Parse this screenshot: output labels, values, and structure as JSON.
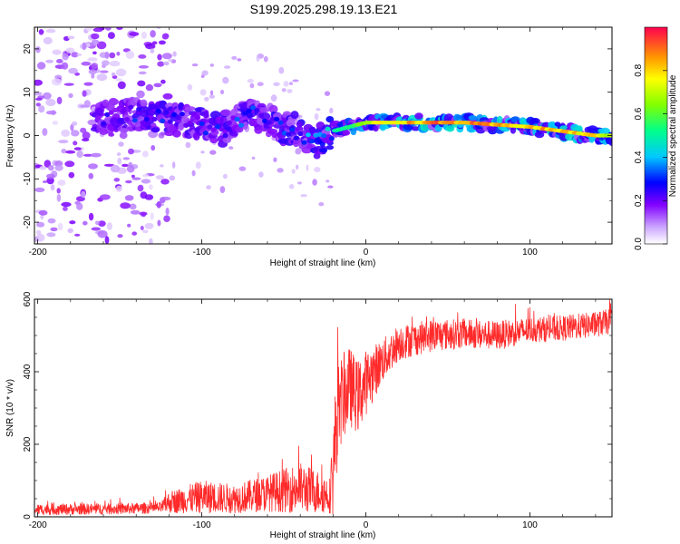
{
  "title": "S199.2025.298.19.13.E21",
  "chart_data": [
    {
      "type": "heatmap",
      "title": "S199.2025.298.19.13.E21",
      "xlabel": "Height of straight line (km)",
      "ylabel": "Frequency (Hz)",
      "xlim": [
        -202,
        150
      ],
      "ylim": [
        -25,
        25
      ],
      "xticks": [
        -200,
        -100,
        0,
        100
      ],
      "xtick_labels": [
        "-200",
        "-100",
        "0",
        "100"
      ],
      "yticks": [
        20,
        10,
        0,
        -10,
        -20
      ],
      "ytick_labels": [
        "20",
        "10",
        "0",
        "-10",
        "-20"
      ],
      "colorbar": {
        "label": "Normalized spectral amplitude",
        "range": [
          0,
          1
        ],
        "ticks": [
          0.0,
          0.2,
          0.4,
          0.6,
          0.8
        ],
        "tick_labels": [
          "0.0",
          "0.2",
          "0.4",
          "0.6",
          "0.8"
        ],
        "colormap": "rainbow"
      },
      "ridge": {
        "x": [
          -160,
          -140,
          -120,
          -100,
          -90,
          -80,
          -70,
          -60,
          -50,
          -40,
          -30,
          -20,
          -10,
          0,
          20,
          40,
          60,
          80,
          100,
          120,
          140,
          150
        ],
        "freq": [
          4,
          5,
          4,
          3,
          1,
          3,
          5,
          4,
          2,
          1,
          -2,
          1,
          2,
          3,
          3,
          3,
          3,
          2.5,
          2,
          1,
          0,
          0
        ],
        "amplitude": [
          0.25,
          0.3,
          0.3,
          0.3,
          0.3,
          0.3,
          0.35,
          0.35,
          0.35,
          0.35,
          0.4,
          0.45,
          0.6,
          0.7,
          0.85,
          0.9,
          0.9,
          0.85,
          0.85,
          0.85,
          0.8,
          0.75
        ]
      }
    },
    {
      "type": "line",
      "xlabel": "Height of straight line (km)",
      "ylabel": "SNR (10 * v/v)",
      "xlim": [
        -202,
        150
      ],
      "ylim": [
        0,
        600
      ],
      "xticks": [
        -200,
        -100,
        0,
        100
      ],
      "xtick_labels": [
        "-200",
        "-100",
        "0",
        "100"
      ],
      "yticks": [
        0,
        200,
        400,
        600
      ],
      "ytick_labels": [
        "0",
        "200",
        "400",
        "600"
      ],
      "color": "#ff0000",
      "envelope": {
        "x": [
          -202,
          -150,
          -125,
          -120,
          -100,
          -80,
          -60,
          -40,
          -30,
          -22,
          -20,
          -18,
          -15,
          -10,
          -5,
          0,
          10,
          20,
          30,
          40,
          60,
          80,
          100,
          120,
          140,
          150
        ],
        "mean": [
          20,
          22,
          25,
          40,
          55,
          50,
          65,
          80,
          70,
          60,
          120,
          260,
          320,
          360,
          330,
          370,
          430,
          480,
          490,
          500,
          505,
          500,
          515,
          520,
          530,
          540
        ],
        "spread": [
          15,
          15,
          15,
          30,
          45,
          40,
          50,
          70,
          60,
          50,
          120,
          150,
          120,
          110,
          100,
          90,
          60,
          50,
          45,
          45,
          40,
          40,
          35,
          35,
          35,
          35
        ]
      }
    }
  ]
}
